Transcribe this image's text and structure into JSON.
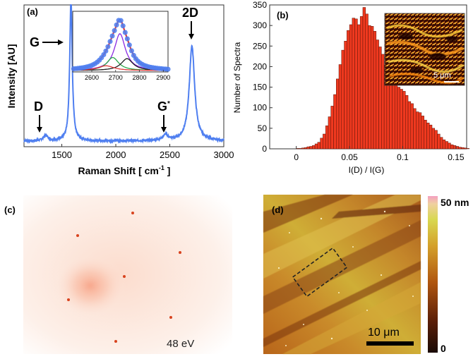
{
  "colors": {
    "raman_line": "#4f7ff0",
    "bar_fill": "#f0391f",
    "fit_red": "#e03a3a",
    "fit_purple": "#8a2be2",
    "fit_green": "#2aa84a",
    "fit_black": "#222222",
    "leed_bg": "#fbe3d8",
    "leed_spot": "#d8431e"
  },
  "panel_a": {
    "tag": "(a)",
    "xlabel_pre": "Raman Shift [ cm",
    "xlabel_sup": "-1",
    "xlabel_post": " ]",
    "ylabel": "Intensity [AU]",
    "peak_labels": {
      "D": "D",
      "G": "G",
      "Gs": "G",
      "Gs_sup": "*",
      "twoD": "2D"
    }
  },
  "panel_b": {
    "tag": "(b)",
    "inset_scale": "5 μm"
  },
  "panel_c": {
    "tag": "(c)",
    "energy": "48 eV"
  },
  "panel_d": {
    "tag": "(d)",
    "scalebar": "10 μm",
    "colorbar_top": "50 nm",
    "colorbar_bottom": "0"
  },
  "chart_data": [
    {
      "id": "raman",
      "type": "line",
      "title": "",
      "xlabel": "Raman Shift [ cm-1 ]",
      "ylabel": "Intensity [AU]",
      "xlim": [
        1150,
        3000
      ],
      "ylim": [
        0,
        1.0
      ],
      "xticks": [
        1500,
        2000,
        2500,
        3000
      ],
      "baseline": 0.04,
      "peaks": [
        {
          "name": "D",
          "x": 1350,
          "height": 0.04,
          "width": 25
        },
        {
          "name": "G",
          "x": 1585,
          "height": 1.0,
          "width": 14
        },
        {
          "name": "G*",
          "x": 2460,
          "height": 0.04,
          "width": 30
        },
        {
          "name": "2D",
          "x": 2705,
          "height": 0.67,
          "width": 30
        }
      ],
      "inset": {
        "type": "line",
        "xlim": [
          2520,
          2920
        ],
        "xticks": [
          2600,
          2700,
          2800,
          2900
        ],
        "fit_components": [
          {
            "center": 2718,
            "amplitude": 0.62,
            "width": 28,
            "color": "purple"
          },
          {
            "center": 2688,
            "amplitude": 0.22,
            "width": 30,
            "color": "green"
          },
          {
            "center": 2748,
            "amplitude": 0.2,
            "width": 30,
            "color": "black"
          },
          {
            "center": 2660,
            "amplitude": 0.08,
            "width": 40,
            "color": "red"
          }
        ],
        "total_fit_color": "red",
        "data_markers": "blue circles"
      }
    },
    {
      "id": "idig_histogram",
      "type": "bar",
      "title": "",
      "xlabel": "I(D) / I(G)",
      "ylabel": "Number of Spectra",
      "xlim": [
        -0.025,
        0.16
      ],
      "ylim": [
        0,
        350
      ],
      "xticks": [
        0,
        0.05,
        0.1,
        0.15
      ],
      "xtick_labels": [
        "0",
        "0.05",
        "0.1",
        "0.15"
      ],
      "yticks": [
        0,
        50,
        100,
        150,
        200,
        250,
        300,
        350
      ],
      "bin_start": 0.0,
      "bin_width": 0.0025,
      "counts": [
        1,
        1,
        2,
        3,
        5,
        6,
        8,
        12,
        16,
        26,
        36,
        56,
        78,
        104,
        132,
        170,
        205,
        240,
        262,
        288,
        302,
        318,
        316,
        302,
        322,
        344,
        328,
        300,
        298,
        286,
        265,
        248,
        230,
        204,
        190,
        172,
        165,
        158,
        150,
        145,
        140,
        130,
        115,
        110,
        98,
        90,
        88,
        80,
        70,
        63,
        58,
        50,
        45,
        36,
        28,
        22,
        18,
        14,
        10,
        8,
        6,
        4,
        3,
        2,
        1
      ]
    },
    {
      "id": "colorbar",
      "type": "heatmap",
      "range": [
        0,
        50
      ],
      "unit": "nm",
      "labels": [
        "50 nm",
        "0"
      ]
    }
  ]
}
